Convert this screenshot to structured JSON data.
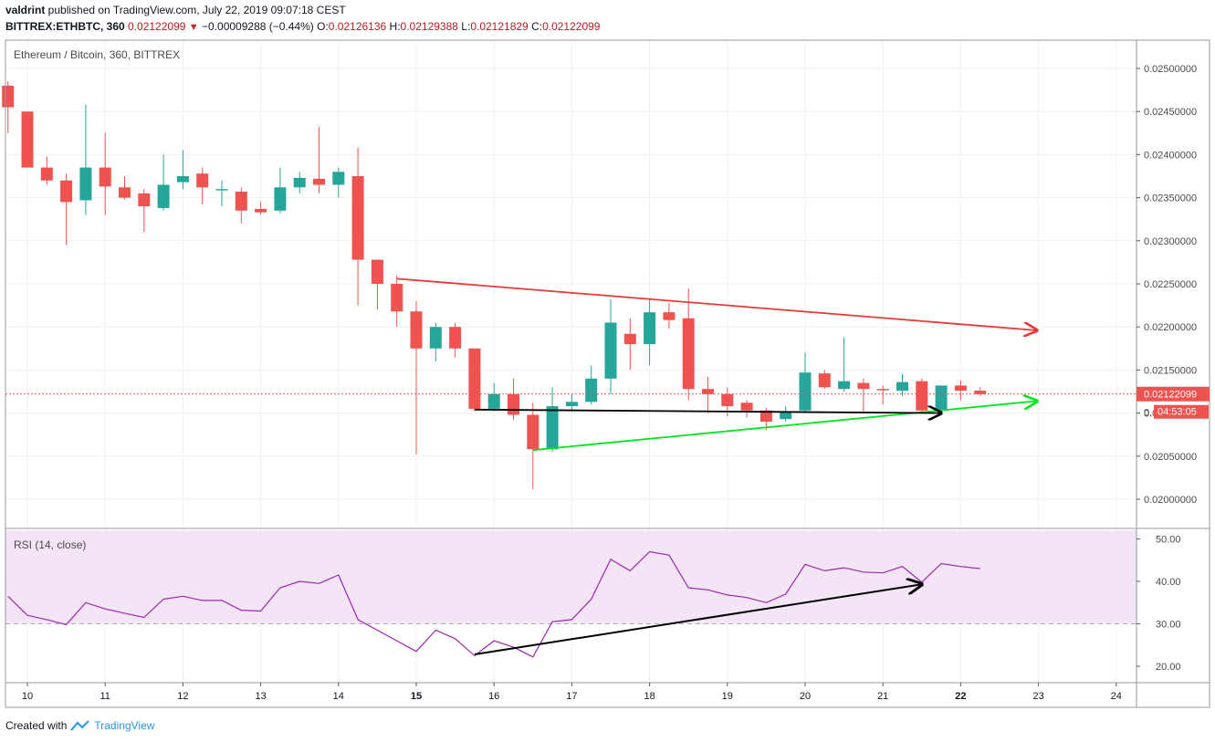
{
  "header": {
    "author": "valdrint",
    "published_text": " published on TradingView.com, July 22, 2019 09:07:18 CEST",
    "symbol": "BITTREX:ETHBTC, 360",
    "last": "0.02122099",
    "change": "−0.00009288 (−0.44%)",
    "o_label": "O:",
    "o_value": "0.02126136",
    "h_label": "H:",
    "h_value": "0.02129388",
    "l_label": "L:",
    "l_value": "0.02121829",
    "c_label": "C:",
    "c_value": "0.02122099"
  },
  "footer": {
    "created_with": "Created with",
    "brand": "TradingView"
  },
  "colors": {
    "up": "#26a69a",
    "down": "#ef5350",
    "rsi_line": "#9c27b0",
    "rsi_band": "#f3e5f5",
    "resistance": "#e53935",
    "support": "#00e61b",
    "annotation": "#000000"
  },
  "chart_data": [
    {
      "type": "candlestick",
      "title": "Ethereum / Bitcoin, 360, BITTREX",
      "ylim": [
        0.0198,
        0.0253
      ],
      "yticks": [
        "0.02000000",
        "0.02050000",
        "0.02100000",
        "0.02150000",
        "0.02200000",
        "0.02250000",
        "0.02300000",
        "0.02350000",
        "0.02400000",
        "0.02450000",
        "0.02500000"
      ],
      "last_price_label": "0.02122099",
      "countdown_label": "04:53:05",
      "partial_tick_label": "0.",
      "x_start_day": 9.75,
      "bar_interval_days": 0.25,
      "candles": [
        {
          "o": 0.0248,
          "h": 0.02485,
          "l": 0.02425,
          "c": 0.02455
        },
        {
          "o": 0.0245,
          "h": 0.0245,
          "l": 0.02385,
          "c": 0.02385
        },
        {
          "o": 0.02385,
          "h": 0.02398,
          "l": 0.02365,
          "c": 0.0237
        },
        {
          "o": 0.0237,
          "h": 0.02378,
          "l": 0.02295,
          "c": 0.02345
        },
        {
          "o": 0.02347,
          "h": 0.02458,
          "l": 0.0233,
          "c": 0.02385
        },
        {
          "o": 0.02385,
          "h": 0.02425,
          "l": 0.0233,
          "c": 0.02363
        },
        {
          "o": 0.02362,
          "h": 0.02375,
          "l": 0.02348,
          "c": 0.0235
        },
        {
          "o": 0.02355,
          "h": 0.0236,
          "l": 0.0231,
          "c": 0.0234
        },
        {
          "o": 0.02338,
          "h": 0.024,
          "l": 0.02335,
          "c": 0.02365
        },
        {
          "o": 0.02368,
          "h": 0.02405,
          "l": 0.0236,
          "c": 0.02375
        },
        {
          "o": 0.02378,
          "h": 0.02385,
          "l": 0.02342,
          "c": 0.02362
        },
        {
          "o": 0.0236,
          "h": 0.0237,
          "l": 0.0234,
          "c": 0.0236
        },
        {
          "o": 0.02357,
          "h": 0.02362,
          "l": 0.0232,
          "c": 0.02335
        },
        {
          "o": 0.02337,
          "h": 0.02345,
          "l": 0.0233,
          "c": 0.02333
        },
        {
          "o": 0.02335,
          "h": 0.02385,
          "l": 0.02332,
          "c": 0.02362
        },
        {
          "o": 0.02362,
          "h": 0.0238,
          "l": 0.02355,
          "c": 0.02373
        },
        {
          "o": 0.02372,
          "h": 0.02432,
          "l": 0.02355,
          "c": 0.02365
        },
        {
          "o": 0.02365,
          "h": 0.02385,
          "l": 0.0235,
          "c": 0.0238
        },
        {
          "o": 0.02375,
          "h": 0.02408,
          "l": 0.02225,
          "c": 0.02278
        },
        {
          "o": 0.02278,
          "h": 0.02278,
          "l": 0.0222,
          "c": 0.0225
        },
        {
          "o": 0.0225,
          "h": 0.0226,
          "l": 0.022,
          "c": 0.02218
        },
        {
          "o": 0.02218,
          "h": 0.0223,
          "l": 0.02052,
          "c": 0.02175
        },
        {
          "o": 0.02175,
          "h": 0.02205,
          "l": 0.0216,
          "c": 0.022
        },
        {
          "o": 0.022,
          "h": 0.02205,
          "l": 0.02165,
          "c": 0.02175
        },
        {
          "o": 0.02175,
          "h": 0.02175,
          "l": 0.02102,
          "c": 0.02105
        },
        {
          "o": 0.02105,
          "h": 0.02135,
          "l": 0.02102,
          "c": 0.02122
        },
        {
          "o": 0.02122,
          "h": 0.0214,
          "l": 0.02092,
          "c": 0.02098
        },
        {
          "o": 0.02098,
          "h": 0.02112,
          "l": 0.02012,
          "c": 0.02058
        },
        {
          "o": 0.02058,
          "h": 0.0213,
          "l": 0.02055,
          "c": 0.02108
        },
        {
          "o": 0.02108,
          "h": 0.02122,
          "l": 0.02102,
          "c": 0.02113
        },
        {
          "o": 0.02113,
          "h": 0.02155,
          "l": 0.0211,
          "c": 0.0214
        },
        {
          "o": 0.0214,
          "h": 0.02232,
          "l": 0.02122,
          "c": 0.02205
        },
        {
          "o": 0.02192,
          "h": 0.0221,
          "l": 0.0215,
          "c": 0.0218
        },
        {
          "o": 0.0218,
          "h": 0.02232,
          "l": 0.02155,
          "c": 0.02217
        },
        {
          "o": 0.02217,
          "h": 0.02228,
          "l": 0.02198,
          "c": 0.02208
        },
        {
          "o": 0.0221,
          "h": 0.02245,
          "l": 0.02115,
          "c": 0.02128
        },
        {
          "o": 0.02128,
          "h": 0.02142,
          "l": 0.021,
          "c": 0.02122
        },
        {
          "o": 0.02122,
          "h": 0.0213,
          "l": 0.02096,
          "c": 0.02108
        },
        {
          "o": 0.02112,
          "h": 0.02115,
          "l": 0.02095,
          "c": 0.02103
        },
        {
          "o": 0.02103,
          "h": 0.02106,
          "l": 0.0208,
          "c": 0.0209
        },
        {
          "o": 0.02093,
          "h": 0.02108,
          "l": 0.0209,
          "c": 0.02102
        },
        {
          "o": 0.02103,
          "h": 0.0217,
          "l": 0.021,
          "c": 0.02147
        },
        {
          "o": 0.02146,
          "h": 0.0215,
          "l": 0.02128,
          "c": 0.0213
        },
        {
          "o": 0.02128,
          "h": 0.02188,
          "l": 0.02125,
          "c": 0.02137
        },
        {
          "o": 0.02135,
          "h": 0.0214,
          "l": 0.02102,
          "c": 0.02128
        },
        {
          "o": 0.02128,
          "h": 0.02132,
          "l": 0.0211,
          "c": 0.02127
        },
        {
          "o": 0.02126,
          "h": 0.02145,
          "l": 0.0212,
          "c": 0.02136
        },
        {
          "o": 0.02137,
          "h": 0.0214,
          "l": 0.021,
          "c": 0.02103
        },
        {
          "o": 0.02103,
          "h": 0.02132,
          "l": 0.021,
          "c": 0.02132
        },
        {
          "o": 0.02132,
          "h": 0.02138,
          "l": 0.02115,
          "c": 0.02126
        },
        {
          "o": 0.02126,
          "h": 0.0213,
          "l": 0.0212,
          "c": 0.02122
        }
      ],
      "trendlines": [
        {
          "name": "resistance",
          "color": "#e53935",
          "from": {
            "day": 14.75,
            "price": 0.02256
          },
          "to": {
            "day": 22.98,
            "price": 0.02196
          },
          "arrow": true
        },
        {
          "name": "support",
          "color": "#00e61b",
          "from": {
            "day": 16.5,
            "price": 0.02057
          },
          "to": {
            "day": 22.98,
            "price": 0.02114
          },
          "arrow": true
        },
        {
          "name": "bottom",
          "color": "#000000",
          "from": {
            "day": 15.75,
            "price": 0.02104
          },
          "to": {
            "day": 21.75,
            "price": 0.021
          },
          "arrow": true
        }
      ]
    },
    {
      "type": "line",
      "title": "RSI (14, close)",
      "ylim": [
        17,
        52
      ],
      "yticks": [
        "20.00",
        "30.00",
        "40.00",
        "50.00"
      ],
      "band": [
        30,
        52
      ],
      "dashed_level": 30,
      "values": [
        36.5,
        32,
        31,
        29.8,
        35,
        33.5,
        32.5,
        31.5,
        35.8,
        36.5,
        35.5,
        35.5,
        33.2,
        33,
        38.5,
        40,
        39.5,
        41.5,
        31,
        28.5,
        26,
        23.5,
        28.5,
        26.5,
        22.5,
        26,
        24.5,
        22.2,
        30.5,
        31,
        35.8,
        45.2,
        42.5,
        47,
        46.2,
        38.5,
        38,
        36.8,
        36.2,
        35,
        37,
        44,
        42.5,
        43.2,
        42.2,
        42,
        43.5,
        39.8,
        44.2,
        43.5,
        43
      ],
      "arrow": {
        "from": {
          "day": 15.75,
          "value": 22.8
        },
        "to": {
          "day": 21.5,
          "value": 39.3
        }
      }
    }
  ],
  "x_axis": {
    "labels": [
      {
        "day": 10,
        "text": "10",
        "bold": false
      },
      {
        "day": 11,
        "text": "11",
        "bold": false
      },
      {
        "day": 12,
        "text": "12",
        "bold": false
      },
      {
        "day": 13,
        "text": "13",
        "bold": false
      },
      {
        "day": 14,
        "text": "14",
        "bold": false
      },
      {
        "day": 15,
        "text": "15",
        "bold": true
      },
      {
        "day": 16,
        "text": "16",
        "bold": false
      },
      {
        "day": 17,
        "text": "17",
        "bold": false
      },
      {
        "day": 18,
        "text": "18",
        "bold": false
      },
      {
        "day": 19,
        "text": "19",
        "bold": false
      },
      {
        "day": 20,
        "text": "20",
        "bold": false
      },
      {
        "day": 21,
        "text": "21",
        "bold": false
      },
      {
        "day": 22,
        "text": "22",
        "bold": true
      },
      {
        "day": 23,
        "text": "23",
        "bold": false
      },
      {
        "day": 24,
        "text": "24",
        "bold": false
      }
    ]
  }
}
